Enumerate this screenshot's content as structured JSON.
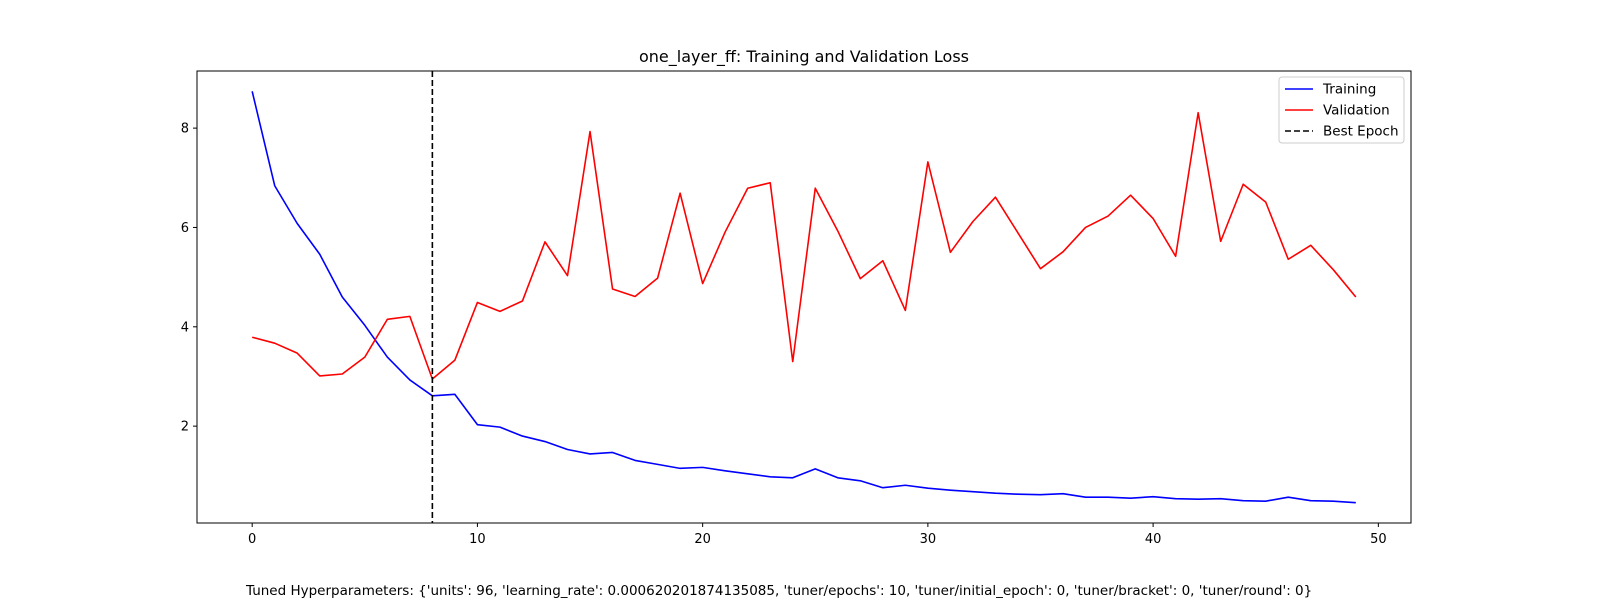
{
  "chart_data": {
    "type": "line",
    "title": "one_layer_ff: Training and Validation Loss",
    "xlabel": "",
    "ylabel": "",
    "x": [
      0,
      1,
      2,
      3,
      4,
      5,
      6,
      7,
      8,
      9,
      10,
      11,
      12,
      13,
      14,
      15,
      16,
      17,
      18,
      19,
      20,
      21,
      22,
      23,
      24,
      25,
      26,
      27,
      28,
      29,
      30,
      31,
      32,
      33,
      34,
      35,
      36,
      37,
      38,
      39,
      40,
      41,
      42,
      43,
      44,
      45,
      46,
      47,
      48,
      49
    ],
    "series": [
      {
        "name": "Training",
        "color": "#0000ff",
        "style": "solid",
        "values": [
          8.74,
          6.84,
          6.08,
          5.46,
          4.6,
          4.03,
          3.39,
          2.93,
          2.61,
          2.64,
          2.03,
          1.98,
          1.8,
          1.69,
          1.53,
          1.44,
          1.47,
          1.31,
          1.23,
          1.15,
          1.17,
          1.1,
          1.04,
          0.98,
          0.96,
          1.14,
          0.96,
          0.9,
          0.76,
          0.81,
          0.75,
          0.71,
          0.68,
          0.65,
          0.63,
          0.62,
          0.64,
          0.57,
          0.57,
          0.55,
          0.58,
          0.54,
          0.53,
          0.54,
          0.5,
          0.49,
          0.57,
          0.5,
          0.49,
          0.46
        ]
      },
      {
        "name": "Validation",
        "color": "#ff0000",
        "style": "solid",
        "values": [
          3.79,
          3.67,
          3.47,
          3.01,
          3.05,
          3.39,
          4.15,
          4.21,
          2.95,
          3.33,
          4.49,
          4.31,
          4.52,
          5.71,
          5.03,
          7.93,
          4.76,
          4.61,
          4.98,
          6.69,
          4.87,
          5.91,
          6.79,
          6.9,
          3.3,
          6.79,
          5.93,
          4.97,
          5.33,
          4.33,
          7.32,
          5.5,
          6.12,
          6.61,
          5.89,
          5.17,
          5.51,
          6.0,
          6.23,
          6.65,
          6.18,
          5.42,
          8.31,
          5.72,
          6.87,
          6.51,
          5.36,
          5.64,
          5.15,
          4.6
        ]
      }
    ],
    "best_epoch": {
      "name": "Best Epoch",
      "x": 8,
      "color": "#000000",
      "style": "dashed"
    },
    "xlim": [
      -2.45,
      51.45
    ],
    "ylim": [
      0.05,
      9.15
    ],
    "xticks": [
      0,
      10,
      20,
      30,
      40,
      50
    ],
    "yticks": [
      2,
      4,
      6,
      8
    ],
    "grid": false,
    "legend_position": "top-right",
    "legend": [
      "Training",
      "Validation",
      "Best Epoch"
    ]
  },
  "caption": "Tuned Hyperparameters: {'units': 96, 'learning_rate': 0.000620201874135085, 'tuner/epochs': 10, 'tuner/initial_epoch': 0, 'tuner/bracket': 0, 'tuner/round': 0}"
}
